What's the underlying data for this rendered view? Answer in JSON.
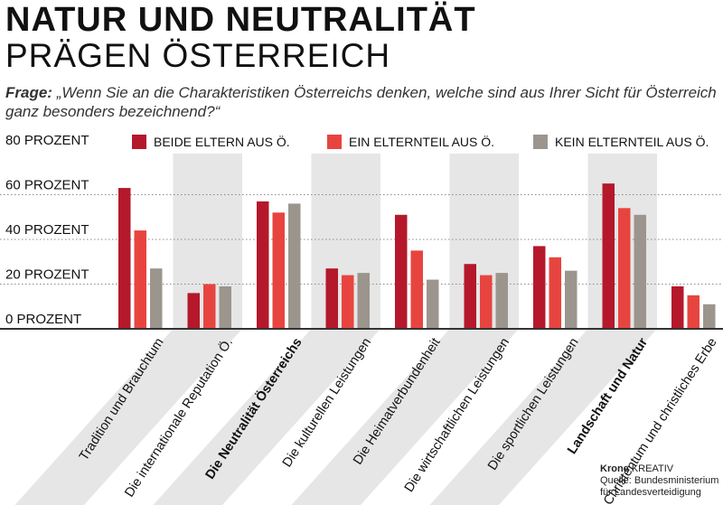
{
  "header": {
    "title_line1": "NATUR UND NEUTRALITÄT",
    "title_line2": "PRÄGEN ÖSTERREICH",
    "question_label": "Frage:",
    "question_text": " „Wenn Sie an die Charakteristiken Österreichs denken, welche sind aus Ihrer Sicht für Österreich ganz besonders bezeichnend?“"
  },
  "footer": {
    "brand": "Krone",
    "brand_suffix": " KREATIV",
    "source_line1": "Quelle: Bundesministerium",
    "source_line2": "für Landesverteidigung"
  },
  "colors": {
    "series1": "#b5182b",
    "series2": "#e8443f",
    "series3": "#9b958d",
    "band": "#e6e6e6",
    "grid": "#8a8a8a",
    "axis": "#333333"
  },
  "chart_data": {
    "type": "bar",
    "title": "NATUR UND NEUTRALITÄT PRÄGEN ÖSTERREICH",
    "ylim": [
      0,
      80
    ],
    "yticks": [
      0,
      20,
      40,
      60,
      80
    ],
    "ytick_labels": [
      "0 PROZENT",
      "20 PROZENT",
      "40 PROZENT",
      "60 PROZENT",
      "80 PROZENT"
    ],
    "legend_position": "top",
    "categories": [
      "Tradition und Brauchtum",
      "Die internationale Reputation Ö.",
      "Die Neutralität Österreichs",
      "Die kulturellen Leistungen",
      "Die Heimatverbundenheit",
      "Die wirtschaftlichen Leistungen",
      "Die sportlichen Leistungen",
      "Landschaft und Natur",
      "Christentum und christliches Erbe"
    ],
    "bold_categories": [
      2,
      7
    ],
    "shaded_categories": [
      1,
      3,
      5,
      7
    ],
    "series": [
      {
        "name": "BEIDE ELTERN AUS Ö.",
        "values": [
          63,
          16,
          57,
          27,
          51,
          29,
          37,
          65,
          19
        ]
      },
      {
        "name": "EIN ELTERNTEIL AUS Ö.",
        "values": [
          44,
          20,
          52,
          24,
          35,
          24,
          32,
          54,
          15
        ]
      },
      {
        "name": "KEIN ELTERNTEIL AUS Ö.",
        "values": [
          27,
          19,
          56,
          25,
          22,
          25,
          26,
          51,
          11
        ]
      }
    ]
  }
}
